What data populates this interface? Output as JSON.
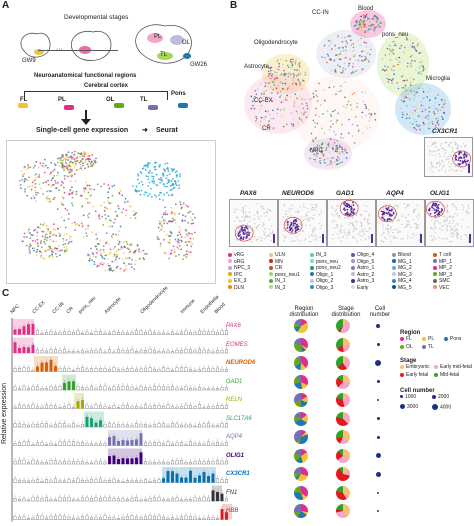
{
  "panelA": {
    "label": "A",
    "dev_stages": "Developmental stages",
    "gw9": "GW9",
    "ellipsis": "···",
    "gw26": "GW26",
    "brain_regions": [
      "PL",
      "OL",
      "TL"
    ],
    "neuro_regions": "Neuroanatomical functional regions",
    "cerebral_cortex": "Cerebral cortex",
    "pons": "Pons",
    "tabs": [
      "FL",
      "PL",
      "OL",
      "TL"
    ],
    "sc_expr": "Single-cell gene expression",
    "seurat": "Seurat"
  },
  "panelB": {
    "label": "B",
    "clusters": [
      "CC-IN",
      "Blood",
      "Oligodendrocyte",
      "pons_neu",
      "Astrocyte",
      "Microglia",
      "CC-EX",
      "CR",
      "NPC"
    ],
    "inset_genes": [
      "CX3CR1",
      "PAX6",
      "NEUROD6",
      "GAD1",
      "AQP4",
      "OLIG1"
    ],
    "legend": [
      {
        "name": "vRG",
        "color": "#e7298a"
      },
      {
        "name": "oRG",
        "color": "#f4a6c8"
      },
      {
        "name": "NPC_3",
        "color": "#c3a2d6"
      },
      {
        "name": "IPC",
        "color": "#e6ab02"
      },
      {
        "name": "EX_3",
        "color": "#f1c232"
      },
      {
        "name": "DLN",
        "color": "#ff7f00"
      },
      {
        "name": "ULN",
        "color": "#fdbf6f"
      },
      {
        "name": "MN",
        "color": "#e31a1c"
      },
      {
        "name": "CR",
        "color": "#b15928"
      },
      {
        "name": "pons_neu1",
        "color": "#a6d854"
      },
      {
        "name": "IN_1",
        "color": "#4daf4a"
      },
      {
        "name": "IN_2",
        "color": "#b2df8a"
      },
      {
        "name": "IN_3",
        "color": "#66c2a5"
      },
      {
        "name": "pons_neu",
        "color": "#8dd3c7"
      },
      {
        "name": "pons_neu2",
        "color": "#1b9e77"
      },
      {
        "name": "Oligo_1",
        "color": "#1f78b4"
      },
      {
        "name": "Oligo_2",
        "color": "#a6cee3"
      },
      {
        "name": "Oligo_3",
        "color": "#3690c0"
      },
      {
        "name": "Oligo_4",
        "color": "#6a51a3"
      },
      {
        "name": "Oligo_5",
        "color": "#9e9ac8"
      },
      {
        "name": "Astro_1",
        "color": "#807dba"
      },
      {
        "name": "Astro_2",
        "color": "#bcbddc"
      },
      {
        "name": "Astro_3",
        "color": "#54278f"
      },
      {
        "name": "Early",
        "color": "#d9d9d9"
      },
      {
        "name": "Blood",
        "color": "#969696"
      },
      {
        "name": "MG_1",
        "color": "#0570b0"
      },
      {
        "name": "MG_2",
        "color": "#74a9cf"
      },
      {
        "name": "MG_3",
        "color": "#bdc9e1"
      },
      {
        "name": "MG_4",
        "color": "#2b8cbe"
      },
      {
        "name": "MG_5",
        "color": "#045a8d"
      },
      {
        "name": "T cell",
        "color": "#d95f02"
      },
      {
        "name": "MP_1",
        "color": "#7570b3"
      },
      {
        "name": "MP_2",
        "color": "#e7298a"
      },
      {
        "name": "MP_3",
        "color": "#66a61e"
      },
      {
        "name": "SMC",
        "color": "#666666"
      },
      {
        "name": "VEC",
        "color": "#fc8d62"
      },
      {
        "name": "VLMC",
        "color": "#8da0cb"
      }
    ]
  },
  "panelC": {
    "label": "C",
    "top_labels": [
      "NPC",
      "CC-EX",
      "CC-IN",
      "CR",
      "pons_neu",
      "Astrocyte",
      "Oligodendrocyte",
      "Immune",
      "Endothelia",
      "Blood"
    ],
    "ylabel": "Relative expression",
    "genes": [
      {
        "name": "PAX6",
        "color": "#e7298a"
      },
      {
        "name": "EOMES",
        "color": "#e7298a"
      },
      {
        "name": "NEUROD6",
        "color": "#d95f02"
      },
      {
        "name": "GAD1",
        "color": "#33a02c"
      },
      {
        "name": "RELN",
        "color": "#a6a600"
      },
      {
        "name": "SLC17A6",
        "color": "#1b9e77"
      },
      {
        "name": "AQP4",
        "color": "#7570b3"
      },
      {
        "name": "OLIG1",
        "color": "#3f007d"
      },
      {
        "name": "CX3CR1",
        "color": "#0570b0"
      },
      {
        "name": "FN1",
        "color": "#333333"
      },
      {
        "name": "HBB",
        "color": "#e31a1c"
      }
    ],
    "col_headers": [
      "Region distribution",
      "Stage distribution",
      "Cell number"
    ],
    "legend": {
      "region_title": "Region",
      "regions": [
        {
          "name": "FL",
          "color": "#e7298a"
        },
        {
          "name": "PL",
          "color": "#f1c232"
        },
        {
          "name": "Pons",
          "color": "#1f78b4"
        },
        {
          "name": "OL",
          "color": "#66a61e"
        },
        {
          "name": "TL",
          "color": "#7570b3"
        }
      ],
      "stage_title": "Stage",
      "stages": [
        {
          "name": "Embryonic",
          "color": "#fdbf6f"
        },
        {
          "name": "Early mid-fetal",
          "color": "#f4a6c8"
        },
        {
          "name": "Early fetal",
          "color": "#e31a1c"
        },
        {
          "name": "Mid-fetal",
          "color": "#33a02c"
        }
      ],
      "cell_title": "Cell number",
      "cells": [
        "1000",
        "2000",
        "3000",
        "4000"
      ]
    }
  }
}
